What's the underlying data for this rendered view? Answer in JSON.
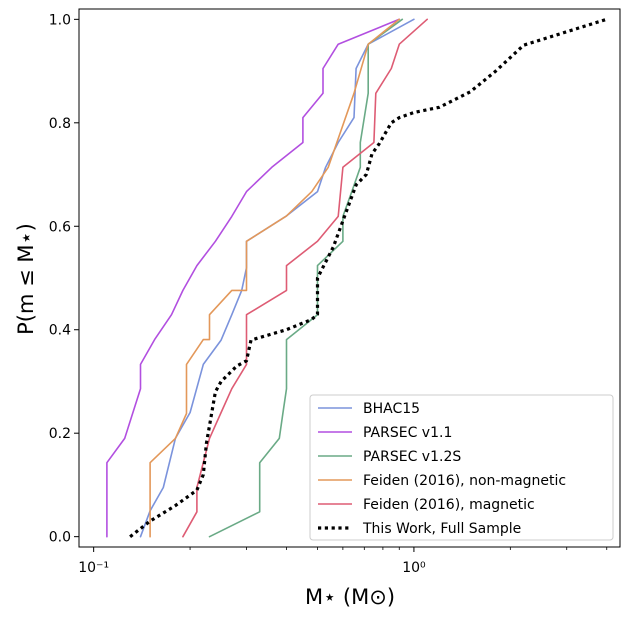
{
  "chart_data": {
    "type": "line",
    "title": "",
    "xlabel": "M⋆ (M⊙)",
    "ylabel": "P(m ≤ M⋆)",
    "xscale": "log",
    "xlim": [
      0.09,
      4.4
    ],
    "ylim": [
      -0.02,
      1.02
    ],
    "xticks": [
      {
        "value": 0.1,
        "label": "10⁻¹"
      },
      {
        "value": 1.0,
        "label": "10⁰"
      }
    ],
    "yticks": [
      {
        "value": 0.0,
        "label": "0.0"
      },
      {
        "value": 0.2,
        "label": "0.2"
      },
      {
        "value": 0.4,
        "label": "0.4"
      },
      {
        "value": 0.6,
        "label": "0.6"
      },
      {
        "value": 0.8,
        "label": "0.8"
      },
      {
        "value": 1.0,
        "label": "1.0"
      }
    ],
    "legend_position": "lower-right",
    "series": [
      {
        "name": "BHAC15",
        "color": "#7b93dc",
        "style": "solid",
        "x": [
          0.14,
          0.15,
          0.165,
          0.18,
          0.2,
          0.22,
          0.25,
          0.27,
          0.29,
          0.3,
          0.3,
          0.4,
          0.5,
          0.53,
          0.58,
          0.65,
          0.66,
          0.72,
          1.0
        ],
        "y": [
          0.0,
          0.05,
          0.095,
          0.19,
          0.24,
          0.333,
          0.38,
          0.429,
          0.476,
          0.52,
          0.571,
          0.62,
          0.667,
          0.714,
          0.762,
          0.81,
          0.905,
          0.952,
          1.0
        ]
      },
      {
        "name": "PARSEC v1.1",
        "color": "#b24fe0",
        "style": "solid",
        "x": [
          0.11,
          0.11,
          0.125,
          0.14,
          0.14,
          0.155,
          0.175,
          0.19,
          0.21,
          0.24,
          0.27,
          0.3,
          0.36,
          0.45,
          0.45,
          0.52,
          0.52,
          0.58,
          0.9
        ],
        "y": [
          0.0,
          0.143,
          0.19,
          0.286,
          0.333,
          0.381,
          0.429,
          0.476,
          0.524,
          0.571,
          0.619,
          0.667,
          0.714,
          0.762,
          0.81,
          0.857,
          0.905,
          0.952,
          1.0
        ]
      },
      {
        "name": "PARSEC v1.2S",
        "color": "#6aaa86",
        "style": "solid",
        "x": [
          0.23,
          0.33,
          0.33,
          0.38,
          0.39,
          0.4,
          0.4,
          0.5,
          0.5,
          0.6,
          0.6,
          0.64,
          0.68,
          0.68,
          0.72,
          0.72,
          0.92
        ],
        "y": [
          0.0,
          0.048,
          0.143,
          0.19,
          0.24,
          0.286,
          0.381,
          0.429,
          0.524,
          0.571,
          0.619,
          0.667,
          0.714,
          0.762,
          0.857,
          0.952,
          1.0
        ]
      },
      {
        "name": "Feiden (2016), non-magnetic",
        "color": "#e3985a",
        "style": "solid",
        "x": [
          0.15,
          0.15,
          0.18,
          0.195,
          0.195,
          0.22,
          0.23,
          0.23,
          0.27,
          0.3,
          0.3,
          0.4,
          0.48,
          0.54,
          0.65,
          0.72,
          0.9
        ],
        "y": [
          0.0,
          0.143,
          0.19,
          0.238,
          0.333,
          0.381,
          0.381,
          0.429,
          0.476,
          0.476,
          0.571,
          0.62,
          0.667,
          0.714,
          0.857,
          0.952,
          1.0
        ]
      },
      {
        "name": "Feiden (2016), magnetic",
        "color": "#de5c74",
        "style": "solid",
        "x": [
          0.19,
          0.21,
          0.21,
          0.23,
          0.25,
          0.27,
          0.3,
          0.3,
          0.4,
          0.4,
          0.5,
          0.58,
          0.6,
          0.75,
          0.76,
          0.85,
          0.9,
          1.1
        ],
        "y": [
          0.0,
          0.048,
          0.095,
          0.19,
          0.24,
          0.286,
          0.333,
          0.429,
          0.476,
          0.524,
          0.571,
          0.619,
          0.714,
          0.762,
          0.857,
          0.905,
          0.952,
          1.0
        ]
      },
      {
        "name": "This Work, Full Sample",
        "color": "#000000",
        "style": "dotted",
        "x": [
          0.13,
          0.15,
          0.18,
          0.21,
          0.22,
          0.225,
          0.24,
          0.25,
          0.28,
          0.3,
          0.31,
          0.4,
          0.48,
          0.5,
          0.5,
          0.56,
          0.66,
          0.71,
          0.74,
          0.78,
          0.85,
          0.9,
          1.0,
          1.2,
          1.5,
          1.8,
          2.2,
          4.0
        ],
        "y": [
          0.0,
          0.03,
          0.06,
          0.09,
          0.12,
          0.18,
          0.28,
          0.3,
          0.33,
          0.34,
          0.38,
          0.4,
          0.42,
          0.43,
          0.5,
          0.56,
          0.68,
          0.7,
          0.74,
          0.76,
          0.8,
          0.81,
          0.82,
          0.83,
          0.86,
          0.9,
          0.95,
          1.0
        ]
      }
    ]
  }
}
